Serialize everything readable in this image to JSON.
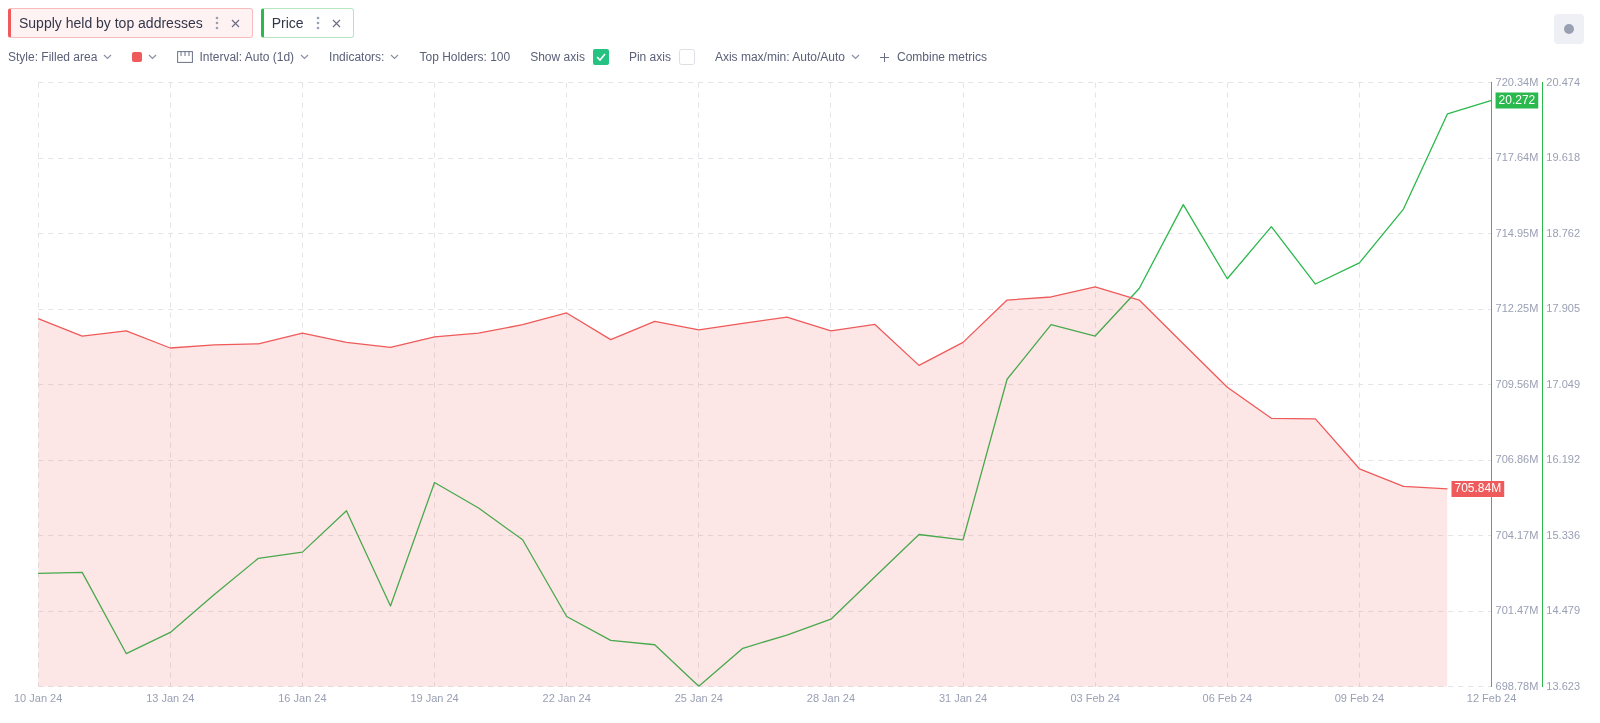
{
  "chart_data": {
    "type": "line",
    "categories": [
      "10 Jan 24",
      null,
      null,
      "13 Jan 24",
      null,
      null,
      "16 Jan 24",
      null,
      null,
      "19 Jan 24",
      null,
      null,
      "22 Jan 24",
      null,
      null,
      "25 Jan 24",
      null,
      null,
      "28 Jan 24",
      null,
      null,
      "31 Jan 24",
      null,
      null,
      "03 Feb 24",
      null,
      null,
      "06 Feb 24",
      null,
      null,
      "09 Feb 24",
      null,
      null,
      "12 Feb 24"
    ],
    "series": [
      {
        "name": "Supply held by top addresses",
        "type": "area",
        "color": "#ef5a5a",
        "values": [
          711.92,
          711.29,
          711.48,
          710.87,
          710.98,
          711.02,
          711.4,
          711.07,
          710.89,
          711.27,
          711.4,
          711.7,
          712.12,
          711.17,
          711.82,
          711.52,
          711.75,
          711.97,
          711.48,
          711.71,
          710.25,
          711.07,
          712.58,
          712.69,
          713.05,
          712.58,
          711.02,
          709.47,
          708.36,
          708.34,
          706.56,
          705.93,
          705.84,
          null
        ],
        "value_labels": [
          null,
          null,
          null,
          null,
          null,
          null,
          null,
          null,
          null,
          null,
          null,
          null,
          null,
          null,
          null,
          null,
          null,
          null,
          null,
          null,
          null,
          null,
          null,
          null,
          null,
          null,
          null,
          null,
          null,
          null,
          null,
          null,
          "705.84M",
          null
        ]
      },
      {
        "name": "Price",
        "type": "line",
        "axis": "y2",
        "color": "#2bb84c",
        "values": [
          14.91,
          14.92,
          14.0,
          14.24,
          14.67,
          15.08,
          15.15,
          15.62,
          14.54,
          15.94,
          15.65,
          15.29,
          14.42,
          14.15,
          14.1,
          13.63,
          14.06,
          14.21,
          14.39,
          14.87,
          15.35,
          15.29,
          17.11,
          17.73,
          17.6,
          18.14,
          19.09,
          18.25,
          18.84,
          18.19,
          18.43,
          19.04,
          20.12,
          20.272
        ],
        "value_labels": [
          null,
          null,
          null,
          null,
          null,
          null,
          null,
          null,
          null,
          null,
          null,
          null,
          null,
          null,
          null,
          null,
          null,
          null,
          null,
          null,
          null,
          null,
          null,
          null,
          null,
          null,
          null,
          null,
          null,
          null,
          null,
          null,
          null,
          "20.272"
        ]
      }
    ],
    "ylim": [
      698.78,
      720.34
    ],
    "yticks": [
      {
        "value": 698.78,
        "label": "698.78M"
      },
      {
        "value": 701.47,
        "label": "701.47M"
      },
      {
        "value": 704.17,
        "label": "704.17M"
      },
      {
        "value": 706.86,
        "label": "706.86M"
      },
      {
        "value": 709.56,
        "label": "709.56M"
      },
      {
        "value": 712.25,
        "label": "712.25M"
      },
      {
        "value": 714.95,
        "label": "714.95M"
      },
      {
        "value": 717.64,
        "label": "717.64M"
      },
      {
        "value": 720.34,
        "label": "720.34M"
      }
    ],
    "y2lim": [
      13.623,
      20.474
    ],
    "y2ticks": [
      13.623,
      14.479,
      15.336,
      16.192,
      17.049,
      17.905,
      18.762,
      19.618,
      20.474
    ],
    "grid": true,
    "legend": "top left",
    "annotations": [
      "Style: Filled area",
      "Interval: Auto (1d)",
      "Indicators:",
      "Top Holders: 100",
      "Show axis",
      "Pin axis",
      "Axis max/min: Auto/Auto",
      "Combine metrics"
    ]
  }
}
